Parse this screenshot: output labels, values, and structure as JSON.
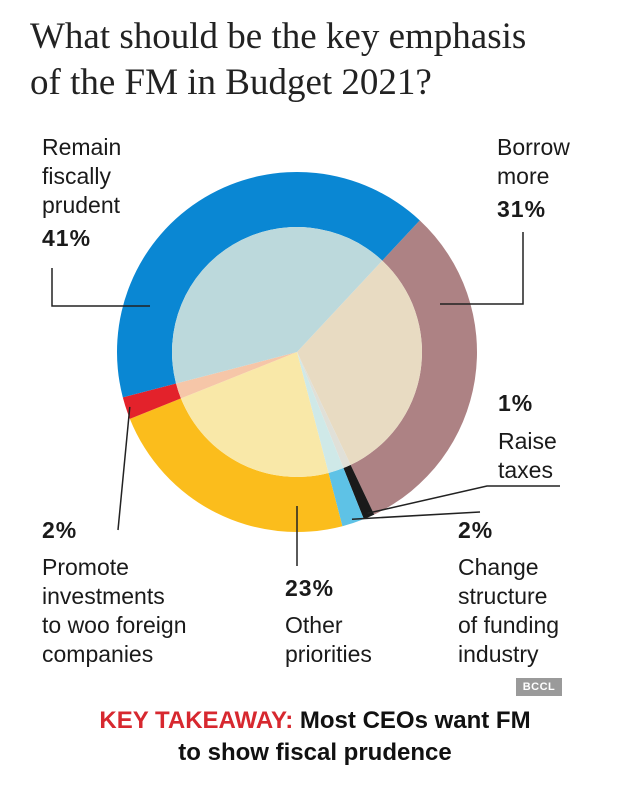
{
  "title_lines": [
    "What should be the key emphasis",
    "of the FM in Budget 2021?"
  ],
  "colors": {
    "fiscal_outer": "#0a87d3",
    "fiscal_inner": "#bcd9dc",
    "borrow_outer": "#ad8284",
    "borrow_inner": "#e8dbc2",
    "taxes_outer": "#1a1a1a",
    "taxes_inner": "#e0e0d8",
    "structure_outer": "#5ec2e6",
    "structure_inner": "#cfe9e8",
    "other_outer": "#fbbd1c",
    "other_inner": "#f9e8a8",
    "promote_outer": "#e3222b",
    "promote_inner": "#f6c6a8",
    "leader": "#222222",
    "accent": "#d7282f"
  },
  "chart_data": {
    "type": "pie",
    "style": "donut",
    "title": "What should be the key emphasis of the FM in Budget 2021?",
    "slices": [
      {
        "key": "fiscal",
        "label": "Remain fiscally prudent",
        "value": 41,
        "value_label": "41%"
      },
      {
        "key": "borrow",
        "label": "Borrow more",
        "value": 31,
        "value_label": "31%"
      },
      {
        "key": "taxes",
        "label": "Raise taxes",
        "value": 1,
        "value_label": "1%"
      },
      {
        "key": "structure",
        "label": "Change structure of funding industry",
        "value": 2,
        "value_label": "2%"
      },
      {
        "key": "other",
        "label": "Other priorities",
        "value": 23,
        "value_label": "23%"
      },
      {
        "key": "promote",
        "label": "Promote investments to woo foreign companies",
        "value": 2,
        "value_label": "2%"
      }
    ]
  },
  "labels": {
    "fiscal": {
      "lines": [
        "Remain",
        "fiscally",
        "prudent"
      ],
      "pct": "41%"
    },
    "borrow": {
      "lines": [
        "Borrow",
        "more"
      ],
      "pct": "31%"
    },
    "taxes": {
      "lines": [
        "Raise",
        "taxes"
      ],
      "pct": "1%"
    },
    "structure": {
      "lines": [
        "Change",
        "structure",
        "of funding",
        "industry"
      ],
      "pct": "2%"
    },
    "other": {
      "lines": [
        "Other",
        "priorities"
      ],
      "pct": "23%"
    },
    "promote": {
      "lines": [
        "Promote",
        "investments",
        "to woo foreign",
        "companies"
      ],
      "pct": "2%"
    }
  },
  "takeaway": {
    "prefix": "KEY TAKEAWAY:",
    "line1": " Most CEOs want FM",
    "line2": "to show fiscal prudence"
  },
  "watermark": "BCCL"
}
